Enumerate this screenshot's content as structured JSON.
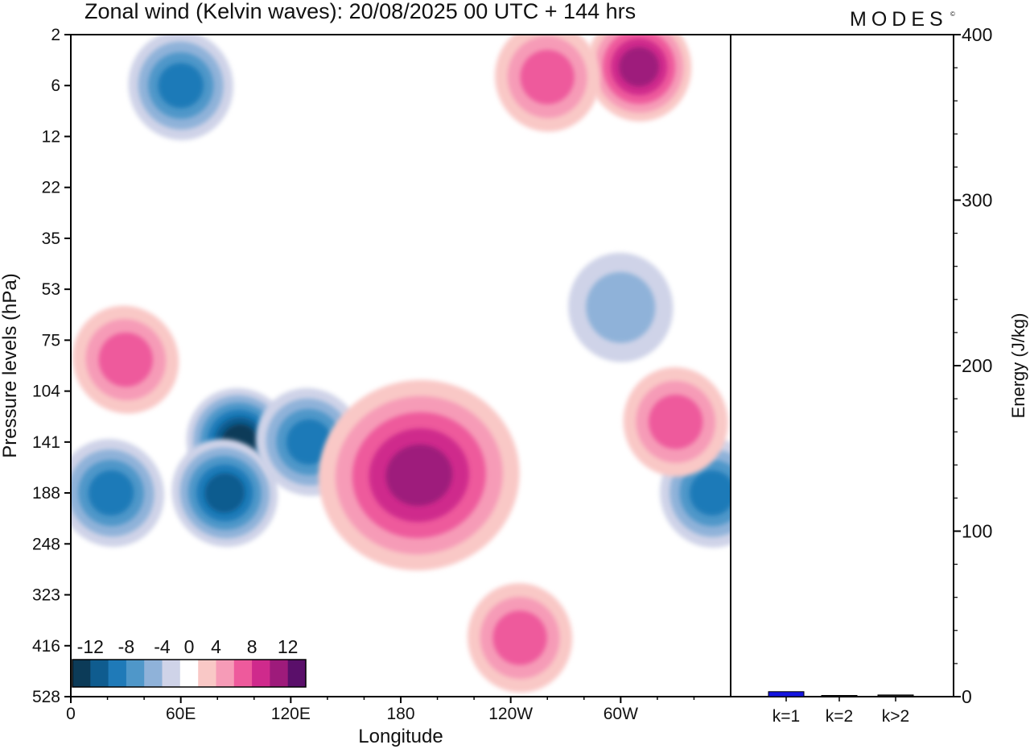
{
  "title": "Zonal wind (Kelvin waves):  20/08/2025  00 UTC  + 144 hrs",
  "brand": "MODES",
  "brand_mark": "©",
  "colors": {
    "neg": [
      "#0c3b58",
      "#0f5c8f",
      "#1f7ab8",
      "#4f97c9",
      "#8fb2d9",
      "#cfd3e8"
    ],
    "zero": "#ffffff",
    "pos": [
      "#f9c8c6",
      "#f69bb7",
      "#ee5a9c",
      "#cf2a8c",
      "#9e1b7b",
      "#5a0f6a"
    ],
    "axis": "#000000",
    "bar_k1": "#1414e0",
    "bar_other": "#222222"
  },
  "chart_data": [
    {
      "type": "heatmap",
      "title": "Zonal wind (Kelvin waves):  20/08/2025  00 UTC  + 144 hrs",
      "xlabel": "Longitude",
      "ylabel": "Pressure levels (hPa)",
      "x_ticks": [
        "0",
        "60E",
        "120E",
        "180",
        "120W",
        "60W"
      ],
      "x_tick_degrees": [
        0,
        60,
        120,
        180,
        240,
        300
      ],
      "xlim": [
        0,
        360
      ],
      "y_ticks": [
        "2",
        "6",
        "12",
        "22",
        "35",
        "53",
        "75",
        "104",
        "141",
        "188",
        "248",
        "323",
        "416",
        "528"
      ],
      "colorbar": {
        "labels": [
          "-12",
          "-8",
          "-4",
          "0",
          "4",
          "8",
          "12"
        ],
        "levels": [
          -14,
          -12,
          -10,
          -8,
          -6,
          -4,
          -2,
          2,
          4,
          6,
          8,
          10,
          12,
          14
        ]
      },
      "features": [
        {
          "lon": 92,
          "level": 141,
          "value": -12
        },
        {
          "lon": 22,
          "level": 188,
          "value": -8
        },
        {
          "lon": 84,
          "level": 188,
          "value": -11
        },
        {
          "lon": 130,
          "level": 141,
          "value": -9
        },
        {
          "lon": 190,
          "level": 170,
          "value": 11
        },
        {
          "lon": 245,
          "level": 400,
          "value": 6
        },
        {
          "lon": 30,
          "level": 85,
          "value": 6
        },
        {
          "lon": 350,
          "level": 188,
          "value": -8
        },
        {
          "lon": 330,
          "level": 125,
          "value": 6
        },
        {
          "lon": 310,
          "level": 4,
          "value": 11
        },
        {
          "lon": 260,
          "level": 5,
          "value": 6
        },
        {
          "lon": 60,
          "level": 6,
          "value": -8
        },
        {
          "lon": 300,
          "level": 60,
          "value": -4
        }
      ]
    },
    {
      "type": "bar",
      "categories": [
        "k=1",
        "k=2",
        "k>2"
      ],
      "values": [
        3,
        0.5,
        1
      ],
      "ylabel": "Energy (J/kg)",
      "ylim": [
        0,
        400
      ],
      "y_ticks": [
        "0",
        "100",
        "200",
        "300",
        "400"
      ],
      "y_tick_values": [
        0,
        100,
        200,
        300,
        400
      ]
    }
  ]
}
